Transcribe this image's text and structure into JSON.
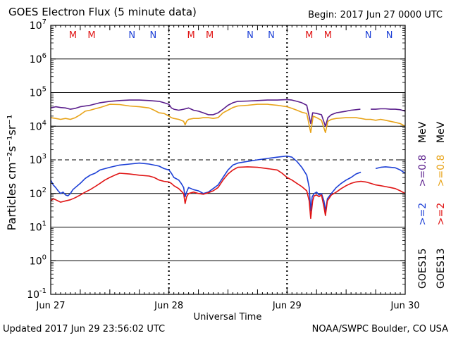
{
  "header": {
    "title": "GOES Electron Flux (5 minute data)",
    "begin": "Begin: 2017 Jun 27 0000 UTC"
  },
  "footer": {
    "updated": "Updated 2017 Jun 29 23:56:02 UTC",
    "credit": "NOAA/SWPC Boulder, CO USA"
  },
  "colors": {
    "goes15_high": "#5a1e8c",
    "goes13_high": "#e8a318",
    "goes15_low": "#1c3fd6",
    "goes13_low": "#e01414",
    "marker_M": "#e01414",
    "marker_N": "#1c3fd6"
  },
  "chart_data": {
    "type": "line",
    "xlabel": "Universal Time",
    "ylabel": "Particles cm⁻²s⁻¹sr⁻¹",
    "x_ticks": [
      "Jun 27",
      "Jun 28",
      "Jun 29",
      "Jun 30"
    ],
    "xlim_hours": [
      0,
      72
    ],
    "y_scale": "log",
    "ylim": [
      0.1,
      10000000
    ],
    "y_tick_labels": [
      {
        "base": "10",
        "exp": "7"
      },
      {
        "base": "10",
        "exp": "6"
      },
      {
        "base": "10",
        "exp": "5"
      },
      {
        "base": "10",
        "exp": "4"
      },
      {
        "base": "10",
        "exp": "3"
      },
      {
        "base": "10",
        "exp": "2"
      },
      {
        "base": "10",
        "exp": "1"
      },
      {
        "base": "10",
        "exp": "0"
      },
      {
        "base": "10",
        "exp": "-1"
      }
    ],
    "reference_lines": [
      {
        "y": 100000,
        "style": "solid"
      },
      {
        "y": 1000,
        "style": "dashed"
      }
    ],
    "markers": [
      {
        "label": "M",
        "hour": 4.5
      },
      {
        "label": "M",
        "hour": 8.3
      },
      {
        "label": "N",
        "hour": 16.5
      },
      {
        "label": "N",
        "hour": 20.8
      },
      {
        "label": "M",
        "hour": 28.5
      },
      {
        "label": "M",
        "hour": 32.3
      },
      {
        "label": "N",
        "hour": 40.5
      },
      {
        "label": "N",
        "hour": 44.8
      },
      {
        "label": "M",
        "hour": 52.5
      },
      {
        "label": "M",
        "hour": 56.3
      },
      {
        "label": "N",
        "hour": 64.5
      },
      {
        "label": "N",
        "hour": 68.8
      }
    ],
    "legend": [
      {
        "satellite": "GOES15",
        "low": ">=2",
        "high": ">=0.8",
        "unit": "MeV"
      },
      {
        "satellite": "GOES13",
        "low": ">=2",
        "high": ">=0.8",
        "unit": "MeV"
      }
    ],
    "series": [
      {
        "name": "GOES15 >=0.8 MeV",
        "key": "goes15_high",
        "points": [
          [
            0,
            35000
          ],
          [
            1,
            38000
          ],
          [
            2,
            36000
          ],
          [
            3,
            35000
          ],
          [
            4,
            32000
          ],
          [
            5,
            34000
          ],
          [
            6,
            38000
          ],
          [
            8,
            42000
          ],
          [
            10,
            50000
          ],
          [
            12,
            55000
          ],
          [
            14,
            58000
          ],
          [
            16,
            60000
          ],
          [
            18,
            60000
          ],
          [
            20,
            58000
          ],
          [
            22,
            55000
          ],
          [
            23,
            50000
          ],
          [
            24,
            45000
          ],
          [
            24.5,
            35000
          ],
          [
            25,
            32000
          ],
          [
            26,
            30000
          ],
          [
            27,
            32000
          ],
          [
            28,
            35000
          ],
          [
            29,
            30000
          ],
          [
            30,
            28000
          ],
          [
            31,
            25000
          ],
          [
            32,
            22000
          ],
          [
            33,
            22000
          ],
          [
            34,
            25000
          ],
          [
            35,
            32000
          ],
          [
            36,
            42000
          ],
          [
            37,
            50000
          ],
          [
            38,
            55000
          ],
          [
            40,
            56000
          ],
          [
            42,
            58000
          ],
          [
            44,
            60000
          ],
          [
            46,
            60000
          ],
          [
            48,
            62000
          ],
          [
            49,
            60000
          ],
          [
            50,
            55000
          ],
          [
            51,
            50000
          ],
          [
            52,
            42000
          ],
          [
            52.8,
            12000
          ],
          [
            53.2,
            25000
          ],
          [
            54,
            24000
          ],
          [
            55,
            22000
          ],
          [
            55.8,
            10000
          ],
          [
            56.3,
            18000
          ],
          [
            57,
            22000
          ],
          [
            58,
            25000
          ],
          [
            60,
            28000
          ],
          [
            61,
            30000
          ],
          [
            62,
            31000
          ],
          [
            62.9,
            32000
          ],
          [
            null,
            null
          ],
          [
            65,
            32000
          ],
          [
            66,
            32000
          ],
          [
            67,
            33000
          ],
          [
            68,
            33000
          ],
          [
            69,
            32000
          ],
          [
            70,
            32000
          ],
          [
            71,
            31000
          ],
          [
            72,
            28000
          ]
        ]
      },
      {
        "name": "GOES13 >=0.8 MeV",
        "key": "goes13_high",
        "points": [
          [
            0,
            18000
          ],
          [
            1,
            17000
          ],
          [
            2,
            16000
          ],
          [
            3,
            17000
          ],
          [
            4,
            16000
          ],
          [
            5,
            18000
          ],
          [
            6,
            22000
          ],
          [
            7,
            28000
          ],
          [
            8,
            30000
          ],
          [
            9,
            33000
          ],
          [
            10,
            36000
          ],
          [
            11,
            40000
          ],
          [
            12,
            45000
          ],
          [
            14,
            44000
          ],
          [
            16,
            40000
          ],
          [
            18,
            38000
          ],
          [
            20,
            35000
          ],
          [
            21,
            30000
          ],
          [
            22,
            25000
          ],
          [
            23,
            24000
          ],
          [
            23.5,
            22000
          ],
          [
            24,
            20000
          ],
          [
            24.5,
            18000
          ],
          [
            25,
            17000
          ],
          [
            26,
            16000
          ],
          [
            27,
            14000
          ],
          [
            27.3,
            11000
          ],
          [
            27.6,
            14000
          ],
          [
            28,
            16000
          ],
          [
            29,
            17000
          ],
          [
            30,
            17000
          ],
          [
            31,
            18000
          ],
          [
            32,
            18000
          ],
          [
            33,
            17000
          ],
          [
            34,
            18000
          ],
          [
            35,
            25000
          ],
          [
            36,
            30000
          ],
          [
            37,
            36000
          ],
          [
            38,
            40000
          ],
          [
            40,
            42000
          ],
          [
            42,
            45000
          ],
          [
            44,
            45000
          ],
          [
            46,
            42000
          ],
          [
            48,
            38000
          ],
          [
            49,
            34000
          ],
          [
            50,
            30000
          ],
          [
            51,
            26000
          ],
          [
            52,
            24000
          ],
          [
            52.8,
            6500
          ],
          [
            53.3,
            20000
          ],
          [
            54,
            18000
          ],
          [
            55,
            15000
          ],
          [
            55.8,
            6500
          ],
          [
            56.3,
            14000
          ],
          [
            57,
            16000
          ],
          [
            58,
            17000
          ],
          [
            60,
            18000
          ],
          [
            62,
            18000
          ],
          [
            63,
            17000
          ],
          [
            64,
            16000
          ],
          [
            65,
            16000
          ],
          [
            66,
            15000
          ],
          [
            67,
            16000
          ],
          [
            68,
            15000
          ],
          [
            69,
            14000
          ],
          [
            70,
            13000
          ],
          [
            71,
            12000
          ],
          [
            72,
            10000
          ]
        ]
      },
      {
        "name": "GOES15 >=2 MeV",
        "key": "goes15_low",
        "points": [
          [
            0,
            250
          ],
          [
            0.5,
            180
          ],
          [
            1,
            150
          ],
          [
            1.5,
            120
          ],
          [
            2,
            100
          ],
          [
            2.5,
            110
          ],
          [
            3,
            90
          ],
          [
            3.5,
            85
          ],
          [
            4,
            100
          ],
          [
            4.5,
            130
          ],
          [
            5,
            150
          ],
          [
            6,
            200
          ],
          [
            7,
            280
          ],
          [
            8,
            350
          ],
          [
            9,
            400
          ],
          [
            10,
            500
          ],
          [
            12,
            600
          ],
          [
            14,
            700
          ],
          [
            16,
            750
          ],
          [
            18,
            800
          ],
          [
            20,
            750
          ],
          [
            22,
            650
          ],
          [
            23,
            550
          ],
          [
            24,
            500
          ],
          [
            24.5,
            400
          ],
          [
            25,
            300
          ],
          [
            26,
            250
          ],
          [
            26.5,
            200
          ],
          [
            27,
            150
          ],
          [
            27.3,
            80
          ],
          [
            27.6,
            110
          ],
          [
            28,
            150
          ],
          [
            29,
            130
          ],
          [
            30,
            120
          ],
          [
            31,
            100
          ],
          [
            32,
            110
          ],
          [
            33,
            140
          ],
          [
            34,
            180
          ],
          [
            35,
            300
          ],
          [
            36,
            500
          ],
          [
            37,
            700
          ],
          [
            38,
            800
          ],
          [
            40,
            900
          ],
          [
            42,
            1000
          ],
          [
            44,
            1100
          ],
          [
            46,
            1200
          ],
          [
            48,
            1300
          ],
          [
            49,
            1200
          ],
          [
            50,
            900
          ],
          [
            51,
            600
          ],
          [
            52,
            350
          ],
          [
            52.5,
            150
          ],
          [
            52.8,
            30
          ],
          [
            53.1,
            80
          ],
          [
            53.5,
            100
          ],
          [
            54,
            110
          ],
          [
            54.5,
            90
          ],
          [
            55,
            100
          ],
          [
            55.5,
            60
          ],
          [
            55.8,
            30
          ],
          [
            56.2,
            70
          ],
          [
            57,
            100
          ],
          [
            58,
            150
          ],
          [
            59,
            200
          ],
          [
            60,
            250
          ],
          [
            61,
            300
          ],
          [
            62,
            380
          ],
          [
            63,
            430
          ],
          [
            null,
            null
          ],
          [
            66,
            550
          ],
          [
            67,
            600
          ],
          [
            68,
            620
          ],
          [
            69,
            600
          ],
          [
            70,
            580
          ],
          [
            71,
            500
          ],
          [
            72,
            400
          ]
        ]
      },
      {
        "name": "GOES13 >=2 MeV",
        "key": "goes13_low",
        "points": [
          [
            0,
            60
          ],
          [
            0.5,
            70
          ],
          [
            1,
            65
          ],
          [
            2,
            55
          ],
          [
            3,
            60
          ],
          [
            4,
            65
          ],
          [
            5,
            75
          ],
          [
            6,
            90
          ],
          [
            7,
            110
          ],
          [
            8,
            130
          ],
          [
            9,
            160
          ],
          [
            10,
            200
          ],
          [
            11,
            250
          ],
          [
            12,
            300
          ],
          [
            13,
            350
          ],
          [
            14,
            400
          ],
          [
            16,
            380
          ],
          [
            18,
            350
          ],
          [
            20,
            330
          ],
          [
            21,
            300
          ],
          [
            22,
            250
          ],
          [
            23,
            230
          ],
          [
            24,
            220
          ],
          [
            24.5,
            200
          ],
          [
            25,
            170
          ],
          [
            26,
            140
          ],
          [
            27,
            100
          ],
          [
            27.3,
            50
          ],
          [
            27.6,
            80
          ],
          [
            28,
            100
          ],
          [
            29,
            110
          ],
          [
            30,
            100
          ],
          [
            31,
            95
          ],
          [
            32,
            105
          ],
          [
            33,
            120
          ],
          [
            34,
            150
          ],
          [
            35,
            250
          ],
          [
            36,
            380
          ],
          [
            37,
            500
          ],
          [
            38,
            600
          ],
          [
            40,
            620
          ],
          [
            42,
            600
          ],
          [
            44,
            550
          ],
          [
            46,
            500
          ],
          [
            47,
            400
          ],
          [
            48,
            300
          ],
          [
            49,
            250
          ],
          [
            50,
            200
          ],
          [
            51,
            160
          ],
          [
            52,
            120
          ],
          [
            52.5,
            60
          ],
          [
            52.8,
            18
          ],
          [
            53.2,
            60
          ],
          [
            53.5,
            85
          ],
          [
            54,
            90
          ],
          [
            54.5,
            80
          ],
          [
            55,
            90
          ],
          [
            55.5,
            40
          ],
          [
            55.8,
            22
          ],
          [
            56.2,
            60
          ],
          [
            57,
            90
          ],
          [
            58,
            110
          ],
          [
            59,
            140
          ],
          [
            60,
            170
          ],
          [
            61,
            200
          ],
          [
            62,
            220
          ],
          [
            63,
            230
          ],
          [
            64,
            220
          ],
          [
            65,
            200
          ],
          [
            66,
            180
          ],
          [
            67,
            170
          ],
          [
            68,
            160
          ],
          [
            69,
            150
          ],
          [
            70,
            140
          ],
          [
            71,
            120
          ],
          [
            72,
            100
          ]
        ]
      }
    ]
  }
}
